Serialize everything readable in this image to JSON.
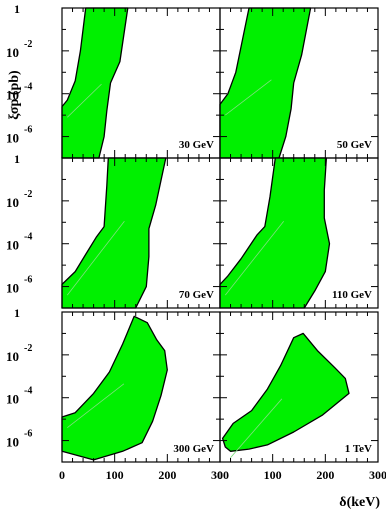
{
  "chart_data": {
    "type": "area",
    "layout": "3x2 grid of panels",
    "xlabel": "δ(keV)",
    "ylabel": "ξσp (pb)",
    "xlim": [
      0,
      300
    ],
    "ylim_log10": [
      -7,
      0
    ],
    "yscale": "log",
    "fill_color": "#00f000",
    "x_ticks": [
      "0",
      "100",
      "200",
      "300"
    ],
    "y_ticks": [
      {
        "log10": 0,
        "base": "1",
        "exp": ""
      },
      {
        "log10": -2,
        "base": "10",
        "exp": "-2"
      },
      {
        "log10": -4,
        "base": "10",
        "exp": "-4"
      },
      {
        "log10": -6,
        "base": "10",
        "exp": "-6"
      }
    ],
    "panels": [
      {
        "mass": "30 GeV",
        "region": [
          [
            0,
            -4.6
          ],
          [
            10,
            -4.3
          ],
          [
            25,
            -3.4
          ],
          [
            35,
            -2.0
          ],
          [
            45,
            0
          ],
          [
            125,
            0
          ],
          [
            110,
            -2.5
          ],
          [
            92,
            -3.5
          ],
          [
            85,
            -4.8
          ],
          [
            80,
            -6.0
          ],
          [
            70,
            -7.0
          ],
          [
            0,
            -7.0
          ]
        ]
      },
      {
        "mass": "50 GeV",
        "region": [
          [
            0,
            -4.5
          ],
          [
            15,
            -4.0
          ],
          [
            30,
            -3.0
          ],
          [
            45,
            -1.2
          ],
          [
            55,
            0
          ],
          [
            172,
            0
          ],
          [
            155,
            -2.2
          ],
          [
            140,
            -3.5
          ],
          [
            135,
            -4.7
          ],
          [
            125,
            -6.0
          ],
          [
            112,
            -7.0
          ],
          [
            0,
            -7.0
          ]
        ]
      },
      {
        "mass": "70 GeV",
        "region": [
          [
            0,
            -5.9
          ],
          [
            25,
            -5.3
          ],
          [
            45,
            -4.5
          ],
          [
            65,
            -3.7
          ],
          [
            80,
            -3.2
          ],
          [
            85,
            -1.3
          ],
          [
            88,
            0
          ],
          [
            197,
            0
          ],
          [
            178,
            -2.2
          ],
          [
            165,
            -3.3
          ],
          [
            165,
            -4.6
          ],
          [
            160,
            -6.0
          ],
          [
            140,
            -7.0
          ],
          [
            0,
            -7.0
          ]
        ]
      },
      {
        "mass": "110 GeV",
        "region": [
          [
            0,
            -5.9
          ],
          [
            15,
            -5.5
          ],
          [
            40,
            -4.7
          ],
          [
            70,
            -3.6
          ],
          [
            85,
            -3.2
          ],
          [
            95,
            -1.8
          ],
          [
            105,
            0
          ],
          [
            202,
            0
          ],
          [
            198,
            -1.5
          ],
          [
            198,
            -2.8
          ],
          [
            208,
            -4.0
          ],
          [
            200,
            -5.3
          ],
          [
            180,
            -6.2
          ],
          [
            160,
            -7.0
          ],
          [
            0,
            -7.0
          ]
        ]
      },
      {
        "mass": "300 GeV",
        "region": [
          [
            0,
            -4.9
          ],
          [
            25,
            -4.7
          ],
          [
            60,
            -3.8
          ],
          [
            90,
            -2.8
          ],
          [
            115,
            -1.5
          ],
          [
            137,
            -0.2
          ],
          [
            162,
            -0.5
          ],
          [
            180,
            -1.3
          ],
          [
            195,
            -1.8
          ],
          [
            200,
            -2.7
          ],
          [
            188,
            -3.9
          ],
          [
            172,
            -5.1
          ],
          [
            152,
            -6.1
          ],
          [
            115,
            -6.5
          ],
          [
            60,
            -6.9
          ],
          [
            0,
            -6.5
          ]
        ]
      },
      {
        "mass": "1 TeV",
        "region": [
          [
            10,
            -6.3
          ],
          [
            5,
            -5.9
          ],
          [
            25,
            -5.2
          ],
          [
            60,
            -4.6
          ],
          [
            90,
            -3.6
          ],
          [
            115,
            -2.5
          ],
          [
            140,
            -1.2
          ],
          [
            158,
            -1.0
          ],
          [
            185,
            -1.8
          ],
          [
            218,
            -2.6
          ],
          [
            238,
            -3.1
          ],
          [
            245,
            -3.8
          ],
          [
            195,
            -4.8
          ],
          [
            140,
            -5.6
          ],
          [
            90,
            -6.2
          ],
          [
            55,
            -6.4
          ],
          [
            20,
            -6.5
          ]
        ]
      }
    ]
  }
}
